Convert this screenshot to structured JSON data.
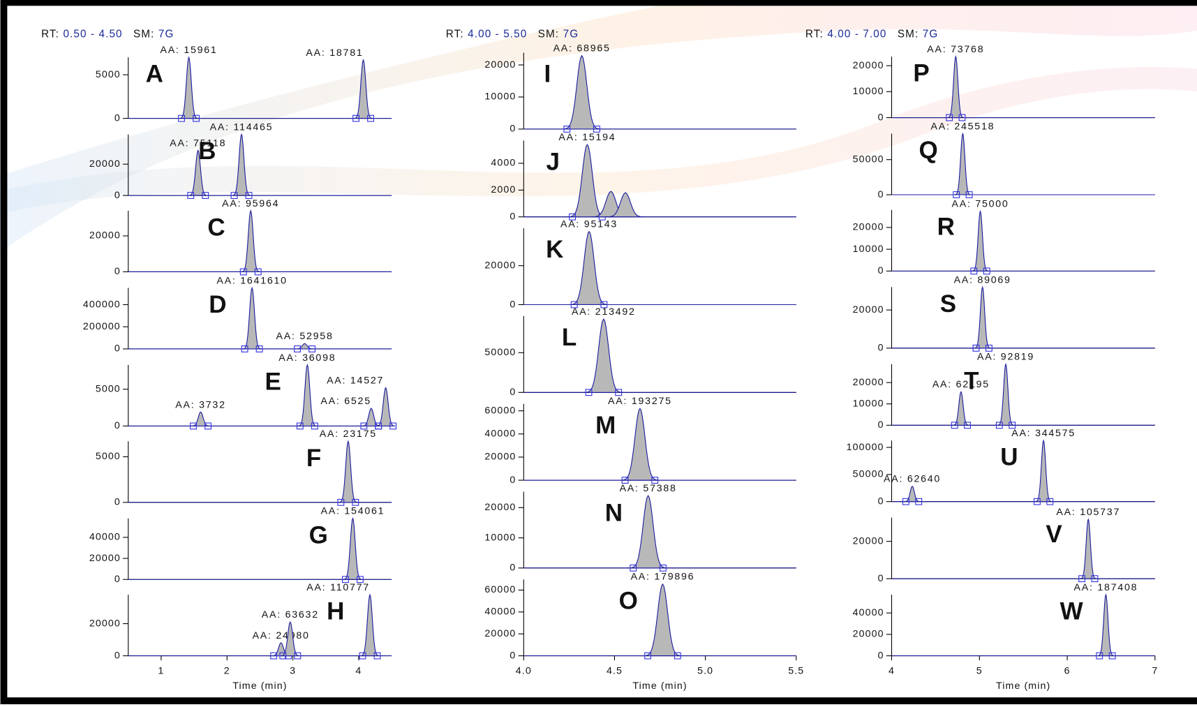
{
  "chart_data": [
    {
      "type": "line",
      "rt_label": "RT:",
      "rt_range": "0.50 - 4.50",
      "sm_label": "SM:",
      "sm": "7G",
      "xlim": [
        0.5,
        4.5
      ],
      "xticks": [
        1,
        2,
        3,
        4
      ],
      "x_label": "Time (min)",
      "panels": [
        {
          "label": "A",
          "ylim": [
            0,
            7000
          ],
          "yticks": [
            0,
            5000
          ],
          "peaks": [
            {
              "x": 1.42,
              "height": 7000,
              "label": "AA: 15961"
            },
            {
              "x": 4.07,
              "height": 6700,
              "label": "AA: 18781"
            }
          ]
        },
        {
          "label": "B",
          "ylim": [
            0,
            39000
          ],
          "yticks": [
            0,
            20000
          ],
          "peaks": [
            {
              "x": 1.56,
              "height": 28800,
              "label": "AA: 75118"
            },
            {
              "x": 2.22,
              "height": 39000,
              "label": "AA: 114465"
            }
          ]
        },
        {
          "label": "C",
          "ylim": [
            0,
            34000
          ],
          "yticks": [
            0,
            20000
          ],
          "peaks": [
            {
              "x": 2.36,
              "height": 34000,
              "label": "AA: 95964"
            }
          ]
        },
        {
          "label": "D",
          "ylim": [
            0,
            552000
          ],
          "yticks": [
            0,
            200000,
            400000
          ],
          "peaks": [
            {
              "x": 2.38,
              "height": 552000,
              "label": "AA: 1641610"
            },
            {
              "x": 3.18,
              "height": 48000,
              "label": "AA: 52958"
            }
          ]
        },
        {
          "label": "E",
          "ylim": [
            0,
            8300
          ],
          "yticks": [
            0,
            5000
          ],
          "peaks": [
            {
              "x": 1.6,
              "height": 1900,
              "label": "AA: 3732"
            },
            {
              "x": 3.22,
              "height": 8300,
              "label": "AA: 36098"
            },
            {
              "x": 4.19,
              "height": 2400,
              "label": "AA: 6525"
            },
            {
              "x": 4.41,
              "height": 5200,
              "label": "AA: 14527"
            }
          ]
        },
        {
          "label": "F",
          "ylim": [
            0,
            6700
          ],
          "yticks": [
            0,
            5000
          ],
          "peaks": [
            {
              "x": 3.84,
              "height": 6700,
              "label": "AA: 23175"
            }
          ]
        },
        {
          "label": "G",
          "ylim": [
            0,
            58000
          ],
          "yticks": [
            0,
            20000,
            40000
          ],
          "peaks": [
            {
              "x": 3.91,
              "height": 58000,
              "label": "AA: 154061"
            }
          ]
        },
        {
          "label": "H",
          "ylim": [
            0,
            38000
          ],
          "yticks": [
            0,
            20000
          ],
          "peaks": [
            {
              "x": 2.82,
              "height": 8100,
              "label": "AA: 24980"
            },
            {
              "x": 2.96,
              "height": 21000,
              "label": "AA: 63632"
            },
            {
              "x": 4.17,
              "height": 38000,
              "label": "AA: 110777"
            }
          ]
        }
      ]
    },
    {
      "type": "line",
      "rt_label": "RT:",
      "rt_range": "4.00 - 5.50",
      "sm_label": "SM:",
      "sm": "7G",
      "xlim": [
        4.0,
        5.5
      ],
      "xticks": [
        {
          "value": 4,
          "label": "4.0"
        },
        4.5,
        {
          "value": 5,
          "label": "5.0"
        },
        5.5
      ],
      "x_label": "Time (min)",
      "panels": [
        {
          "label": "I",
          "ylim": [
            0,
            23800
          ],
          "yticks": [
            0,
            10000,
            20000
          ],
          "peaks": [
            {
              "x": 4.32,
              "height": 22900,
              "label": "AA: 68965"
            }
          ]
        },
        {
          "label": "J",
          "ylim": [
            0,
            5700
          ],
          "yticks": [
            0,
            2000,
            4000
          ],
          "peaks": [
            {
              "x": 4.35,
              "height": 5400,
              "label": "AA: 15194"
            },
            {
              "x": 4.48,
              "height": 1900
            },
            {
              "x": 4.56,
              "height": 1800
            }
          ]
        },
        {
          "label": "K",
          "ylim": [
            0,
            39200
          ],
          "yticks": [
            0,
            20000
          ],
          "peaks": [
            {
              "x": 4.36,
              "height": 37600,
              "label": "AA: 95143"
            }
          ]
        },
        {
          "label": "L",
          "ylim": [
            0,
            96000
          ],
          "yticks": [
            0,
            50000
          ],
          "peaks": [
            {
              "x": 4.44,
              "height": 92300,
              "label": "AA: 213492"
            }
          ]
        },
        {
          "label": "M",
          "ylim": [
            0,
            66000
          ],
          "yticks": [
            0,
            20000,
            40000,
            60000
          ],
          "peaks": [
            {
              "x": 4.64,
              "height": 62000,
              "label": "AA: 193275"
            }
          ]
        },
        {
          "label": "N",
          "ylim": [
            0,
            25300
          ],
          "yticks": [
            0,
            10000,
            20000
          ],
          "peaks": [
            {
              "x": 4.685,
              "height": 24000,
              "label": "AA: 57388"
            }
          ]
        },
        {
          "label": "O",
          "ylim": [
            0,
            69700
          ],
          "yticks": [
            0,
            20000,
            40000,
            60000
          ],
          "peaks": [
            {
              "x": 4.765,
              "height": 65500,
              "label": "AA: 179896"
            }
          ]
        }
      ]
    },
    {
      "type": "line",
      "rt_label": "RT:",
      "rt_range": "4.00 - 7.00",
      "sm_label": "SM:",
      "sm": "7G",
      "xlim": [
        4,
        7
      ],
      "xticks": [
        4,
        5,
        6,
        7
      ],
      "x_label": "Time (min)",
      "panels": [
        {
          "label": "P",
          "ylim": [
            0,
            23500
          ],
          "yticks": [
            0,
            10000,
            20000
          ],
          "peaks": [
            {
              "x": 4.73,
              "height": 23500,
              "label": "AA: 73768"
            }
          ]
        },
        {
          "label": "Q",
          "ylim": [
            0,
            87000
          ],
          "yticks": [
            0,
            50000
          ],
          "peaks": [
            {
              "x": 4.81,
              "height": 87000,
              "label": "AA: 245518"
            }
          ]
        },
        {
          "label": "R",
          "ylim": [
            0,
            28000
          ],
          "yticks": [
            0,
            10000,
            20000
          ],
          "peaks": [
            {
              "x": 5.01,
              "height": 27400,
              "label": "AA: 75000"
            }
          ]
        },
        {
          "label": "S",
          "ylim": [
            0,
            32000
          ],
          "yticks": [
            0,
            20000
          ],
          "peaks": [
            {
              "x": 5.035,
              "height": 32000,
              "label": "AA: 89069"
            }
          ]
        },
        {
          "label": "T",
          "ylim": [
            0,
            28600
          ],
          "yticks": [
            0,
            10000,
            20000
          ],
          "peaks": [
            {
              "x": 4.79,
              "height": 15700,
              "label": "AA: 62195"
            },
            {
              "x": 5.3,
              "height": 28600,
              "label": "AA: 92819"
            }
          ]
        },
        {
          "label": "U",
          "ylim": [
            0,
            112700
          ],
          "yticks": [
            0,
            50000,
            100000
          ],
          "peaks": [
            {
              "x": 4.235,
              "height": 28200,
              "label": "AA: 62640"
            },
            {
              "x": 5.73,
              "height": 112700,
              "label": "AA: 344575"
            }
          ]
        },
        {
          "label": "V",
          "ylim": [
            0,
            32700
          ],
          "yticks": [
            0,
            20000
          ],
          "peaks": [
            {
              "x": 6.24,
              "height": 31800,
              "label": "AA: 105737"
            }
          ]
        },
        {
          "label": "W",
          "ylim": [
            0,
            57000
          ],
          "yticks": [
            0,
            20000,
            40000
          ],
          "peaks": [
            {
              "x": 6.44,
              "height": 57000,
              "label": "AA: 187408"
            }
          ]
        }
      ]
    }
  ]
}
